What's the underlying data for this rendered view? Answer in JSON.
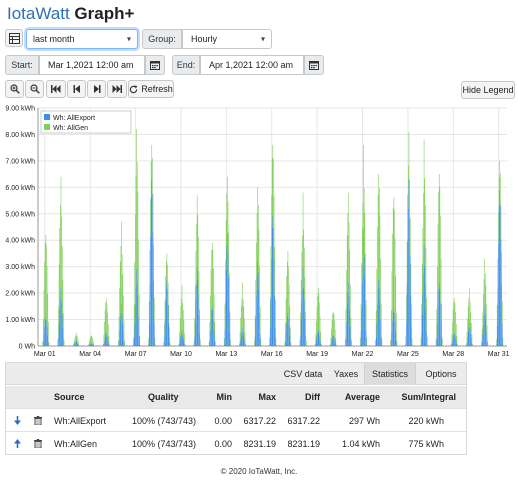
{
  "header": {
    "brand": "IotaWatt",
    "suffix": " Graph+"
  },
  "controls": {
    "period_value": "last month",
    "group_label": "Group:",
    "group_value": "Hourly",
    "start_label": "Start:",
    "start_value": "Mar 1,2021 12:00 am",
    "end_label": "End:",
    "end_value": "Apr 1,2021 12:00 am",
    "refresh_label": "Refresh",
    "hide_legend_label": "Hide Legend"
  },
  "icons": {
    "table": "table-icon",
    "calendar": "calendar-icon",
    "zoom_in": "zoom-in-icon",
    "zoom_out": "zoom-out-icon",
    "first": "skip-to-start-icon",
    "prev": "step-backward-icon",
    "next": "step-forward-icon",
    "last": "skip-to-end-icon",
    "refresh": "refresh-icon",
    "down": "arrow-down-icon",
    "up": "arrow-up-icon",
    "trash": "trash-icon"
  },
  "colors": {
    "export": "#3c8fe6",
    "gen": "#82cf5b",
    "brand": "#2e6fb7"
  },
  "chart_data": {
    "type": "bar",
    "stacked": true,
    "ylim": [
      0,
      9.0
    ],
    "yticks": [
      "0 Wh",
      "1.00 kWh",
      "2.00 kWh",
      "3.00 kWh",
      "4.00 kWh",
      "5.00 kWh",
      "6.00 kWh",
      "7.00 kWh",
      "8.00 kWh",
      "9.00 kWh"
    ],
    "xticks": [
      "Mar 01",
      "Mar 04",
      "Mar 07",
      "Mar 10",
      "Mar 13",
      "Mar 16",
      "Mar 19",
      "Mar 22",
      "Mar 25",
      "Mar 28",
      "Mar 31"
    ],
    "legend": {
      "position": "top-left",
      "entries": [
        "Wh: AllExport",
        "Wh: AllGen"
      ]
    },
    "grid": true,
    "days": [
      "Mar 01",
      "Mar 02",
      "Mar 03",
      "Mar 04",
      "Mar 05",
      "Mar 06",
      "Mar 07",
      "Mar 08",
      "Mar 09",
      "Mar 10",
      "Mar 11",
      "Mar 12",
      "Mar 13",
      "Mar 14",
      "Mar 15",
      "Mar 16",
      "Mar 17",
      "Mar 18",
      "Mar 19",
      "Mar 20",
      "Mar 21",
      "Mar 22",
      "Mar 23",
      "Mar 24",
      "Mar 25",
      "Mar 26",
      "Mar 27",
      "Mar 28",
      "Mar 29",
      "Mar 30",
      "Mar 31"
    ],
    "series": [
      {
        "name": "Wh: AllExport",
        "daily_peak_kwh": [
          1.1,
          2.2,
          0.2,
          0.1,
          0.5,
          1.6,
          2.9,
          6.3,
          2.5,
          0.6,
          3.0,
          1.5,
          4.3,
          0.7,
          3.2,
          4.9,
          1.3,
          3.0,
          0.6,
          0.4,
          2.4,
          4.4,
          2.5,
          1.4,
          6.3,
          3.8,
          2.4,
          0.5,
          0.9,
          1.5,
          5.9
        ]
      },
      {
        "name": "Wh: AllGen",
        "daily_peak_kwh": [
          4.2,
          6.4,
          0.5,
          0.4,
          1.8,
          4.7,
          8.2,
          7.6,
          3.5,
          2.3,
          5.7,
          3.9,
          6.4,
          2.4,
          6.0,
          7.6,
          3.6,
          5.8,
          2.2,
          1.3,
          5.8,
          7.6,
          6.5,
          5.6,
          8.1,
          7.8,
          6.5,
          1.8,
          2.2,
          3.3,
          7.0
        ]
      }
    ]
  },
  "stats": {
    "tabs": [
      "CSV data",
      "Yaxes",
      "Statistics",
      "Options"
    ],
    "active_tab": "Statistics",
    "columns": [
      "Source",
      "Quality",
      "Min",
      "Max",
      "Diff",
      "Average",
      "Sum/Integral"
    ],
    "rows": [
      {
        "source": "Wh:AllExport",
        "quality": "100% (743/743)",
        "min": "0.00",
        "max": "6317.22",
        "diff": "6317.22",
        "average": "297 Wh",
        "sum": "220 kWh"
      },
      {
        "source": "Wh:AllGen",
        "quality": "100% (743/743)",
        "min": "0.00",
        "max": "8231.19",
        "diff": "8231.19",
        "average": "1.04 kWh",
        "sum": "775 kWh"
      }
    ]
  },
  "footer": "© 2020 IoTaWatt, Inc."
}
